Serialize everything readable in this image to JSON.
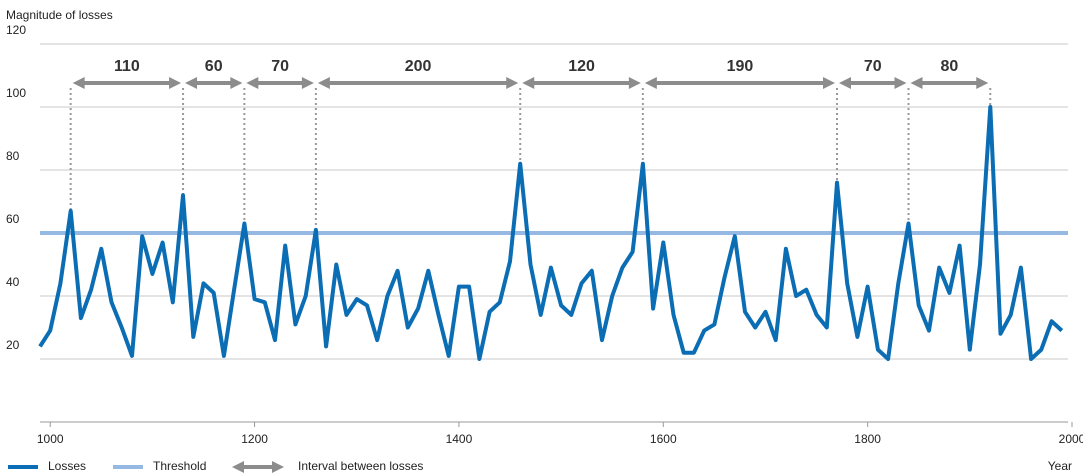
{
  "chart_data": {
    "type": "line",
    "y_label": "Magnitude of losses",
    "x_label": "Year",
    "x": [
      990,
      1000,
      1010,
      1020,
      1030,
      1040,
      1050,
      1060,
      1070,
      1080,
      1090,
      1100,
      1110,
      1120,
      1130,
      1140,
      1150,
      1160,
      1170,
      1180,
      1190,
      1200,
      1210,
      1220,
      1230,
      1240,
      1250,
      1260,
      1270,
      1280,
      1290,
      1300,
      1310,
      1320,
      1330,
      1340,
      1350,
      1360,
      1370,
      1380,
      1390,
      1400,
      1410,
      1420,
      1430,
      1440,
      1450,
      1460,
      1470,
      1480,
      1490,
      1500,
      1510,
      1520,
      1530,
      1540,
      1550,
      1560,
      1570,
      1580,
      1590,
      1600,
      1610,
      1620,
      1630,
      1640,
      1650,
      1660,
      1670,
      1680,
      1690,
      1700,
      1710,
      1720,
      1730,
      1740,
      1750,
      1760,
      1770,
      1780,
      1790,
      1800,
      1810,
      1820,
      1830,
      1840,
      1850,
      1860,
      1870,
      1880,
      1890,
      1900,
      1910,
      1920,
      1930,
      1940,
      1950,
      1960,
      1970,
      1980,
      1990
    ],
    "series": [
      {
        "name": "Losses",
        "color": "#0b6db3",
        "values": [
          24,
          29,
          44,
          67,
          33,
          42,
          55,
          38,
          30,
          21,
          59,
          47,
          57,
          38,
          72,
          27,
          44,
          41,
          21,
          42,
          63,
          39,
          38,
          26,
          56,
          31,
          40,
          61,
          24,
          50,
          34,
          39,
          37,
          26,
          40,
          48,
          30,
          36,
          48,
          34,
          21,
          43,
          43,
          20,
          35,
          38,
          51,
          82,
          50,
          34,
          49,
          37,
          34,
          44,
          48,
          26,
          40,
          49,
          54,
          82,
          36,
          57,
          34,
          22,
          22,
          29,
          31,
          46,
          59,
          35,
          30,
          35,
          26,
          55,
          40,
          42,
          34,
          30,
          76,
          44,
          27,
          43,
          23,
          20,
          44,
          63,
          37,
          29,
          49,
          41,
          56,
          23,
          50,
          100,
          28,
          34,
          49,
          20,
          23,
          32,
          29
        ]
      }
    ],
    "threshold": {
      "name": "Threshold",
      "value": 60,
      "color": "#95b9e2"
    },
    "interval_label": "Interval between losses",
    "interval_color": "#8c8c8c",
    "intervals": [
      {
        "from": 1020,
        "to": 1130,
        "value": 110
      },
      {
        "from": 1130,
        "to": 1190,
        "value": 60
      },
      {
        "from": 1190,
        "to": 1260,
        "value": 70
      },
      {
        "from": 1260,
        "to": 1460,
        "value": 200
      },
      {
        "from": 1460,
        "to": 1580,
        "value": 120
      },
      {
        "from": 1580,
        "to": 1770,
        "value": 190
      },
      {
        "from": 1770,
        "to": 1840,
        "value": 70
      },
      {
        "from": 1840,
        "to": 1920,
        "value": 80
      }
    ],
    "xlim": [
      990,
      2000
    ],
    "ylim": [
      0,
      120
    ],
    "xticks": [
      1000,
      1200,
      1400,
      1600,
      1800,
      2000
    ],
    "yticks": [
      20,
      40,
      60,
      80,
      100,
      120
    ],
    "grid": true
  }
}
